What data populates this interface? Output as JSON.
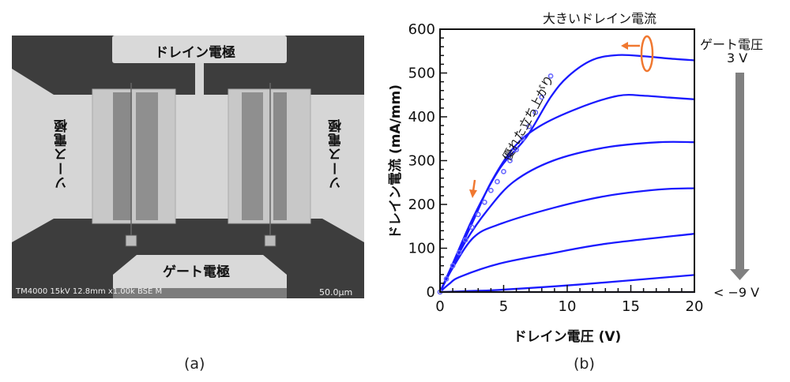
{
  "panel_a": {
    "caption": "(a)",
    "labels": {
      "drain": "ドレイン電極",
      "source_left": "ソース電極",
      "source_right": "ソース電極",
      "gate": "ゲート電極"
    },
    "sem_info": "TM4000 15kV 12.8mm x1.00k BSE M",
    "scale_bar": "50.0µm"
  },
  "panel_b": {
    "caption": "(b)",
    "annotations": {
      "large_current": "大きいドレイン電流",
      "steep_rise": "優れた立ち上がり",
      "gate_voltage_title": "ゲート電圧",
      "gate_top": "3 V",
      "gate_bottom": "< −9 V"
    },
    "colors": {
      "curve": "#1a1aff",
      "marker": "#6b6bff",
      "annotation_arrow": "#f07830",
      "gate_arrow": "#808080"
    }
  },
  "chart_data": {
    "type": "line",
    "xlabel": "ドレイン電圧 (V)",
    "ylabel": "ドレイン電流 (mA/mm)",
    "xlim": [
      0,
      20
    ],
    "ylim": [
      0,
      600
    ],
    "xticks": [
      "0",
      "5",
      "10",
      "15",
      "20"
    ],
    "yticks": [
      "0",
      "100",
      "200",
      "300",
      "400",
      "500",
      "600"
    ],
    "grid": false,
    "series": [
      {
        "x": [
          0,
          1,
          2.65,
          4.7,
          6.8,
          8.7,
          10.1,
          12,
          14,
          16.1,
          18,
          20
        ],
        "y": [
          0,
          65,
          173,
          282,
          354,
          445,
          493,
          530,
          541,
          538,
          533,
          529
        ]
      },
      {
        "x": [
          0,
          1,
          2.65,
          4,
          5.8,
          7.8,
          10.9,
          14,
          16.1,
          18,
          20
        ],
        "y": [
          0,
          62,
          165,
          250,
          330,
          378,
          420,
          448,
          448,
          444,
          440
        ]
      },
      {
        "x": [
          0,
          1,
          2,
          3.7,
          5.8,
          8.9,
          13,
          17.2,
          20
        ],
        "y": [
          0,
          58,
          115,
          186,
          252,
          300,
          330,
          342,
          342
        ]
      },
      {
        "x": [
          0,
          1,
          2.65,
          4.7,
          8.9,
          13,
          17.2,
          20
        ],
        "y": [
          0,
          55,
          125,
          155,
          192,
          219,
          234,
          237
        ]
      },
      {
        "x": [
          0,
          0.7,
          1.6,
          4.7,
          8.9,
          13,
          20
        ],
        "y": [
          0,
          18,
          35,
          65,
          89,
          110,
          133
        ]
      },
      {
        "x": [
          0,
          2,
          4.7,
          10.9,
          20
        ],
        "y": [
          0,
          2,
          5,
          17,
          39
        ]
      },
      {
        "x": [
          0,
          20
        ],
        "y": [
          0,
          0
        ]
      }
    ],
    "marker_series": {
      "marker": "circle",
      "x": [
        0,
        0.5,
        1,
        1.5,
        2,
        2.5,
        3,
        3.5,
        4,
        4.5,
        5,
        5.5,
        6,
        6.5,
        7,
        7.5,
        8,
        8.7
      ],
      "y": [
        0,
        30,
        60,
        90,
        119,
        148,
        177,
        205,
        232,
        252,
        275,
        300,
        325,
        350,
        378,
        410,
        445,
        493
      ]
    }
  }
}
